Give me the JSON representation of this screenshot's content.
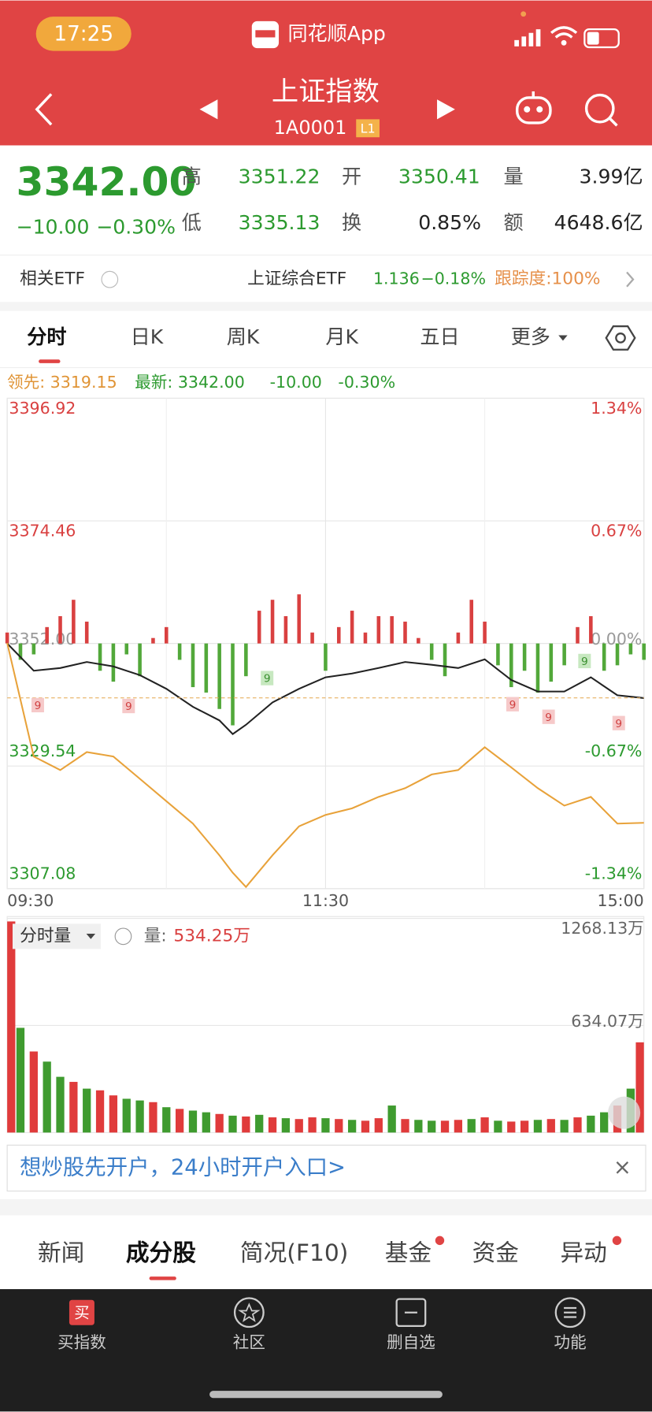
{
  "status_bar": {
    "time": "17:25",
    "app_name": "同花顺App"
  },
  "header": {
    "title": "上证指数",
    "code": "1A0001",
    "badge": "L1"
  },
  "quote": {
    "price": "3342.00",
    "change": "−10.00",
    "change_pct": "−0.30%",
    "fields": [
      {
        "label": "高",
        "value": "3351.22"
      },
      {
        "label": "开",
        "value": "3350.41"
      },
      {
        "label": "量",
        "value": "3.99亿"
      },
      {
        "label": "低",
        "value": "3335.13"
      },
      {
        "label": "换",
        "value": "0.85%"
      },
      {
        "label": "额",
        "value": "4648.6亿"
      }
    ]
  },
  "etf": {
    "label": "相关ETF",
    "name": "上证综合ETF",
    "price": "1.136",
    "change": "−0.18%",
    "tracking": "跟踪度:100%"
  },
  "tabs": [
    "分时",
    "日K",
    "周K",
    "月K",
    "五日",
    "更多"
  ],
  "legend": {
    "lead": "领先: 3319.15",
    "latest": "最新: 3342.00",
    "change": "-10.00",
    "pct": "-0.30%"
  },
  "intraday_chart": {
    "type": "line",
    "xlim": [
      0,
      240
    ],
    "xticks": [
      {
        "value": 0,
        "label": "09:30"
      },
      {
        "value": 120,
        "label": "11:30"
      },
      {
        "value": 240,
        "label": "15:00"
      }
    ],
    "ylim": [
      3307.08,
      3396.92
    ],
    "yticks": [
      3396.92,
      3374.46,
      {
        "value": 3352,
        "label": "3352.00"
      },
      3329.54,
      3307.08
    ],
    "y2lim": [
      -1.34,
      1.34
    ],
    "y2ticks": [
      {
        "value": 1.34,
        "label": "1.34%"
      },
      {
        "value": 0.67,
        "label": "0.67%"
      },
      {
        "value": 0,
        "label": "0.00%"
      },
      {
        "value": -0.67,
        "label": "-0.67%"
      },
      {
        "value": -1.34,
        "label": "-1.34%"
      }
    ],
    "grid": true,
    "x": [
      0,
      10,
      20,
      30,
      40,
      50,
      60,
      70,
      80,
      85,
      90,
      100,
      110,
      120,
      130,
      140,
      150,
      160,
      170,
      180,
      190,
      200,
      210,
      220,
      230,
      240
    ],
    "series": [
      {
        "color": "#222222",
        "values": [
          3352.0,
          3347.0,
          3347.5,
          3348.6,
          3347.8,
          3346.2,
          3343.7,
          3340.4,
          3337.9,
          3335.4,
          3337.1,
          3341.2,
          3343.7,
          3345.8,
          3346.5,
          3347.5,
          3348.6,
          3348.1,
          3347.5,
          3349.1,
          3345.3,
          3343.2,
          3343.2,
          3345.8,
          3342.5,
          3342.0
        ]
      },
      {
        "color": "#e8a23a",
        "values": [
          3352.08,
          3331.3,
          3328.8,
          3332.1,
          3331.3,
          3327.2,
          3323.1,
          3319.0,
          3313.2,
          3310.0,
          3307.4,
          3313.2,
          3318.5,
          3320.6,
          3321.8,
          3323.9,
          3325.5,
          3328.0,
          3328.8,
          3333.0,
          3329.3,
          3325.5,
          3322.3,
          3323.9,
          3319.0,
          3319.15
        ]
      }
    ],
    "breadth": {
      "up_color": "#d94040",
      "down_color": "#52a83a",
      "x": [
        0,
        5,
        10,
        15,
        20,
        25,
        30,
        35,
        40,
        45,
        50,
        55,
        60,
        65,
        70,
        75,
        80,
        85,
        90,
        95,
        100,
        105,
        110,
        115,
        120,
        125,
        130,
        135,
        140,
        145,
        150,
        155,
        160,
        165,
        170,
        175,
        180,
        185,
        190,
        195,
        200,
        205,
        210,
        215,
        220,
        225,
        230,
        235,
        240
      ],
      "values": [
        3354,
        3349,
        3350,
        3355,
        3357,
        3360,
        3356,
        3347,
        3345,
        3350,
        3346,
        3353,
        3355,
        3349,
        3344,
        3343,
        3340,
        3337,
        3346,
        3358,
        3360,
        3357,
        3361,
        3354,
        3347,
        3355,
        3358,
        3354,
        3357,
        3357,
        3356,
        3353,
        3349,
        3346,
        3354,
        3360,
        3356,
        3348,
        3344,
        3347,
        3343,
        3345,
        3348,
        3355,
        3357,
        3347,
        3348,
        3350,
        3349
      ]
    },
    "signal_markers": [
      "9",
      "9",
      "9",
      "9",
      "9",
      "9",
      "9"
    ]
  },
  "volume_chart": {
    "type": "bar",
    "title": "分时量",
    "current_label": "量:",
    "current_value": "534.25万",
    "xlim": [
      0,
      240
    ],
    "ylim": [
      0,
      1268.13
    ],
    "yticks": [
      {
        "value": 1268.13,
        "label": "1268.13万"
      },
      {
        "value": 634.07,
        "label": "634.07万"
      }
    ],
    "x": [
      0,
      5,
      10,
      15,
      20,
      25,
      30,
      35,
      40,
      45,
      50,
      55,
      60,
      65,
      70,
      75,
      80,
      85,
      90,
      95,
      100,
      105,
      110,
      115,
      120,
      125,
      130,
      135,
      140,
      145,
      150,
      155,
      160,
      165,
      170,
      175,
      180,
      185,
      190,
      195,
      200,
      205,
      210,
      215,
      220,
      225,
      230,
      235,
      240
    ],
    "values": [
      1250,
      620,
      480,
      420,
      330,
      300,
      260,
      250,
      220,
      200,
      190,
      180,
      150,
      140,
      130,
      120,
      110,
      100,
      95,
      105,
      90,
      85,
      80,
      90,
      85,
      80,
      75,
      70,
      85,
      160,
      80,
      75,
      70,
      70,
      75,
      80,
      90,
      70,
      65,
      70,
      75,
      80,
      75,
      90,
      100,
      120,
      160,
      260,
      534.25
    ],
    "colors": [
      "#e03b3b",
      "#3f9b2f",
      "#e03b3b",
      "#3f9b2f",
      "#3f9b2f",
      "#e03b3b",
      "#3f9b2f",
      "#e03b3b",
      "#e03b3b",
      "#3f9b2f",
      "#3f9b2f",
      "#e03b3b",
      "#3f9b2f",
      "#e03b3b",
      "#3f9b2f",
      "#3f9b2f",
      "#e03b3b",
      "#3f9b2f",
      "#e03b3b",
      "#3f9b2f",
      "#e03b3b",
      "#3f9b2f",
      "#e03b3b",
      "#e03b3b",
      "#3f9b2f",
      "#e03b3b",
      "#3f9b2f",
      "#e03b3b",
      "#e03b3b",
      "#3f9b2f",
      "#e03b3b",
      "#3f9b2f",
      "#3f9b2f",
      "#e03b3b",
      "#e03b3b",
      "#3f9b2f",
      "#e03b3b",
      "#3f9b2f",
      "#e03b3b",
      "#e03b3b",
      "#3f9b2f",
      "#e03b3b",
      "#3f9b2f",
      "#e03b3b",
      "#3f9b2f",
      "#3f9b2f",
      "#e03b3b",
      "#3f9b2f",
      "#e03b3b"
    ]
  },
  "ad_banner": {
    "text": "想炒股先开户，24小时开户入口>",
    "close": "×"
  },
  "section_tabs": [
    "新闻",
    "成分股",
    "简况(F10)",
    "基金",
    "资金",
    "异动"
  ],
  "bottom_nav": [
    {
      "icon": "买",
      "label": "买指数"
    },
    {
      "label": "社区"
    },
    {
      "label": "删自选"
    },
    {
      "label": "功能"
    }
  ]
}
